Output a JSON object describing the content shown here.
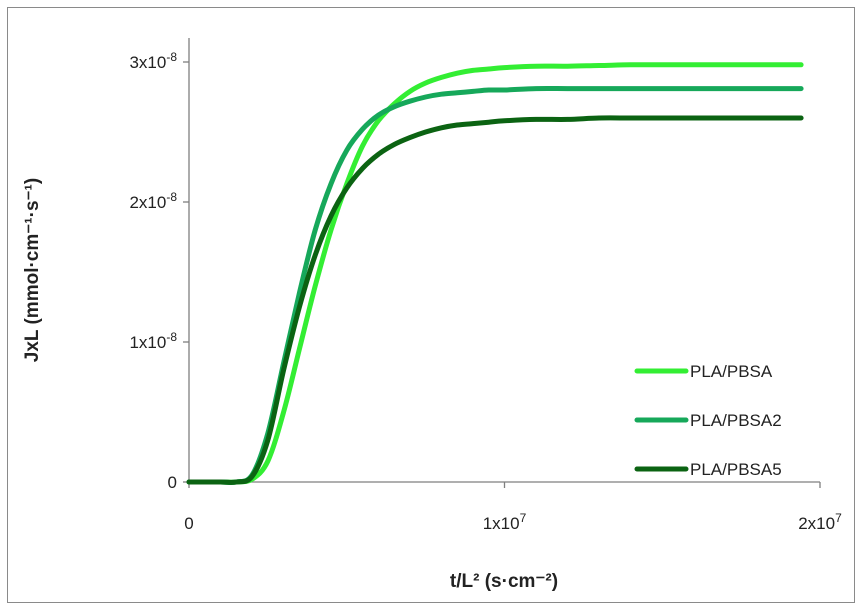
{
  "chart_data": {
    "type": "line",
    "title": "",
    "xlabel": "t/L² (s·cm⁻²)",
    "ylabel": "JxL (mmol·cm⁻¹·s⁻¹)",
    "xlim": [
      0,
      20000000
    ],
    "ylim": [
      0,
      3e-08
    ],
    "xticks": [
      {
        "value": 0,
        "label": "0"
      },
      {
        "value": 10000000,
        "label": "1x10⁷"
      },
      {
        "value": 20000000,
        "label": "2x10⁷"
      }
    ],
    "yticks": [
      {
        "value": 0,
        "label": "0"
      },
      {
        "value": 1e-08,
        "label": "1x10⁻⁸"
      },
      {
        "value": 2e-08,
        "label": "2x10⁻⁸"
      },
      {
        "value": 3e-08,
        "label": "3x10⁻⁸"
      }
    ],
    "grid": false,
    "legend_position": "bottom-right",
    "x": [
      0,
      1000000,
      1500000,
      2000000,
      2500000,
      3000000,
      3500000,
      4000000,
      4500000,
      5000000,
      5500000,
      6000000,
      6500000,
      7000000,
      7500000,
      8000000,
      8500000,
      9000000,
      9500000,
      10000000,
      11000000,
      12000000,
      13000000,
      14000000,
      15000000,
      16000000,
      17000000,
      18000000,
      19000000,
      19400000
    ],
    "series": [
      {
        "name": "PLA/PBSA",
        "color": "#33ee33",
        "values": [
          0,
          0,
          0,
          2e-10,
          1.5e-09,
          5e-09,
          9.5e-09,
          1.4e-08,
          1.8e-08,
          2.13e-08,
          2.4e-08,
          2.58e-08,
          2.7e-08,
          2.79e-08,
          2.85e-08,
          2.89e-08,
          2.92e-08,
          2.94e-08,
          2.95e-08,
          2.96e-08,
          2.97e-08,
          2.97e-08,
          2.975e-08,
          2.98e-08,
          2.98e-08,
          2.98e-08,
          2.98e-08,
          2.98e-08,
          2.98e-08,
          2.98e-08
        ]
      },
      {
        "name": "PLA/PBSA2",
        "color": "#16a85a",
        "values": [
          0,
          0,
          0,
          5e-10,
          3.5e-09,
          8.5e-09,
          1.35e-08,
          1.8e-08,
          2.13e-08,
          2.37e-08,
          2.52e-08,
          2.62e-08,
          2.68e-08,
          2.72e-08,
          2.75e-08,
          2.77e-08,
          2.78e-08,
          2.79e-08,
          2.8e-08,
          2.8e-08,
          2.81e-08,
          2.81e-08,
          2.81e-08,
          2.81e-08,
          2.81e-08,
          2.81e-08,
          2.81e-08,
          2.81e-08,
          2.81e-08,
          2.81e-08
        ]
      },
      {
        "name": "PLA/PBSA5",
        "color": "#0b6312",
        "values": [
          0,
          0,
          0,
          4e-10,
          3e-09,
          8e-09,
          1.25e-08,
          1.62e-08,
          1.9e-08,
          2.1e-08,
          2.24e-08,
          2.34e-08,
          2.41e-08,
          2.46e-08,
          2.5e-08,
          2.53e-08,
          2.55e-08,
          2.56e-08,
          2.57e-08,
          2.58e-08,
          2.59e-08,
          2.59e-08,
          2.6e-08,
          2.6e-08,
          2.6e-08,
          2.6e-08,
          2.6e-08,
          2.6e-08,
          2.6e-08,
          2.6e-08
        ]
      }
    ]
  }
}
